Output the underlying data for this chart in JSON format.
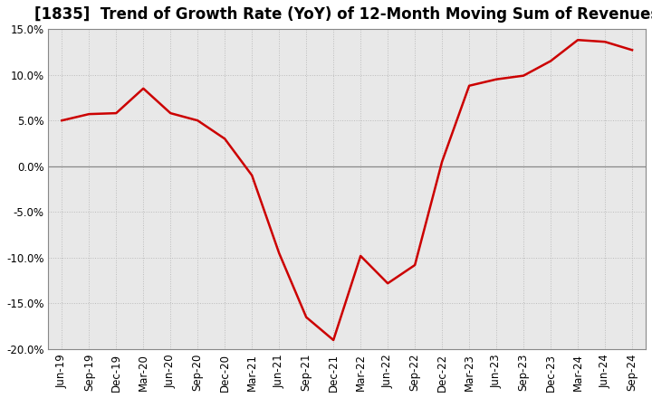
{
  "title": "[1835]  Trend of Growth Rate (YoY) of 12-Month Moving Sum of Revenues",
  "x_labels": [
    "Jun-19",
    "Sep-19",
    "Dec-19",
    "Mar-20",
    "Jun-20",
    "Sep-20",
    "Dec-20",
    "Mar-21",
    "Jun-21",
    "Sep-21",
    "Dec-21",
    "Mar-22",
    "Jun-22",
    "Sep-22",
    "Dec-22",
    "Mar-23",
    "Jun-23",
    "Sep-23",
    "Dec-23",
    "Mar-24",
    "Jun-24",
    "Sep-24"
  ],
  "y_values": [
    5.0,
    5.7,
    5.8,
    8.5,
    5.8,
    5.0,
    3.0,
    -1.0,
    -9.5,
    -16.5,
    -19.0,
    -9.8,
    -12.8,
    -10.8,
    0.5,
    8.8,
    9.5,
    9.9,
    11.5,
    13.8,
    13.6,
    12.7
  ],
  "line_color": "#cc0000",
  "line_width": 1.8,
  "ylim": [
    -20.0,
    15.0
  ],
  "yticks": [
    -20.0,
    -15.0,
    -10.0,
    -5.0,
    0.0,
    5.0,
    10.0,
    15.0
  ],
  "plot_bg_color": "#e8e8e8",
  "fig_bg_color": "#ffffff",
  "grid_color": "#bbbbbb",
  "zero_line_color": "#888888",
  "title_fontsize": 12,
  "tick_fontsize": 8.5
}
